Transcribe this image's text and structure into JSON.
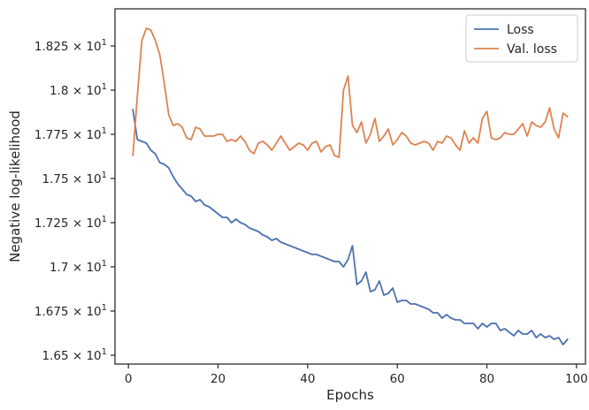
{
  "chart_data": {
    "type": "line",
    "title": "",
    "xlabel": "Epochs",
    "ylabel": "Negative log-likelihood",
    "xlim": [
      -3,
      102
    ],
    "ylim": [
      16.45,
      18.46
    ],
    "x_ticks": [
      0,
      20,
      40,
      60,
      80,
      100
    ],
    "x_tick_labels": [
      "0",
      "20",
      "40",
      "60",
      "80",
      "100"
    ],
    "y_ticks": [
      16.5,
      16.75,
      17.0,
      17.25,
      17.5,
      17.75,
      18.0,
      18.25
    ],
    "y_tick_labels": [
      {
        "mantissa": "1.65",
        "base": "10",
        "exp": "1"
      },
      {
        "mantissa": "1.675",
        "base": "10",
        "exp": "1"
      },
      {
        "mantissa": "1.7",
        "base": "10",
        "exp": "1"
      },
      {
        "mantissa": "1.725",
        "base": "10",
        "exp": "1"
      },
      {
        "mantissa": "1.75",
        "base": "10",
        "exp": "1"
      },
      {
        "mantissa": "1.775",
        "base": "10",
        "exp": "1"
      },
      {
        "mantissa": "1.8",
        "base": "10",
        "exp": "1"
      },
      {
        "mantissa": "1.825",
        "base": "10",
        "exp": "1"
      }
    ],
    "grid": false,
    "legend_position": "top-right",
    "x": [
      1,
      2,
      3,
      4,
      5,
      6,
      7,
      8,
      9,
      10,
      11,
      12,
      13,
      14,
      15,
      16,
      17,
      18,
      19,
      20,
      21,
      22,
      23,
      24,
      25,
      26,
      27,
      28,
      29,
      30,
      31,
      32,
      33,
      34,
      35,
      36,
      37,
      38,
      39,
      40,
      41,
      42,
      43,
      44,
      45,
      46,
      47,
      48,
      49,
      50,
      51,
      52,
      53,
      54,
      55,
      56,
      57,
      58,
      59,
      60,
      61,
      62,
      63,
      64,
      65,
      66,
      67,
      68,
      69,
      70,
      71,
      72,
      73,
      74,
      75,
      76,
      77,
      78,
      79,
      80,
      81,
      82,
      83,
      84,
      85,
      86,
      87,
      88,
      89,
      90,
      91,
      92,
      93,
      94,
      95,
      96,
      97,
      98
    ],
    "series": [
      {
        "name": "Loss",
        "color": "#4c72b0",
        "values": [
          17.89,
          17.72,
          17.71,
          17.7,
          17.66,
          17.64,
          17.59,
          17.58,
          17.56,
          17.51,
          17.47,
          17.44,
          17.41,
          17.4,
          17.37,
          17.38,
          17.35,
          17.34,
          17.32,
          17.3,
          17.28,
          17.28,
          17.25,
          17.27,
          17.25,
          17.24,
          17.22,
          17.21,
          17.2,
          17.18,
          17.17,
          17.15,
          17.16,
          17.14,
          17.13,
          17.12,
          17.11,
          17.1,
          17.09,
          17.08,
          17.07,
          17.07,
          17.06,
          17.05,
          17.04,
          17.03,
          17.03,
          17.0,
          17.04,
          17.12,
          16.9,
          16.92,
          16.97,
          16.86,
          16.87,
          16.92,
          16.84,
          16.85,
          16.88,
          16.8,
          16.81,
          16.81,
          16.79,
          16.79,
          16.78,
          16.77,
          16.76,
          16.74,
          16.74,
          16.71,
          16.73,
          16.71,
          16.7,
          16.7,
          16.68,
          16.68,
          16.68,
          16.65,
          16.68,
          16.66,
          16.68,
          16.68,
          16.64,
          16.65,
          16.63,
          16.61,
          16.64,
          16.62,
          16.62,
          16.64,
          16.6,
          16.62,
          16.6,
          16.61,
          16.59,
          16.6,
          16.56,
          16.59
        ]
      },
      {
        "name": "Val. loss",
        "color": "#dd8452",
        "values": [
          17.63,
          17.97,
          18.28,
          18.35,
          18.34,
          18.28,
          18.2,
          18.04,
          17.86,
          17.8,
          17.81,
          17.79,
          17.73,
          17.72,
          17.79,
          17.78,
          17.74,
          17.74,
          17.74,
          17.75,
          17.75,
          17.71,
          17.72,
          17.71,
          17.74,
          17.71,
          17.66,
          17.64,
          17.7,
          17.71,
          17.69,
          17.66,
          17.7,
          17.74,
          17.7,
          17.66,
          17.68,
          17.7,
          17.69,
          17.66,
          17.7,
          17.71,
          17.65,
          17.68,
          17.69,
          17.63,
          17.62,
          18.0,
          18.08,
          17.8,
          17.76,
          17.82,
          17.7,
          17.75,
          17.84,
          17.71,
          17.74,
          17.78,
          17.69,
          17.72,
          17.76,
          17.74,
          17.7,
          17.69,
          17.7,
          17.71,
          17.7,
          17.66,
          17.71,
          17.7,
          17.74,
          17.73,
          17.69,
          17.66,
          17.77,
          17.7,
          17.73,
          17.7,
          17.84,
          17.88,
          17.73,
          17.72,
          17.73,
          17.76,
          17.75,
          17.75,
          17.78,
          17.81,
          17.74,
          17.82,
          17.8,
          17.79,
          17.82,
          17.9,
          17.78,
          17.73,
          17.87,
          17.85
        ]
      }
    ]
  }
}
